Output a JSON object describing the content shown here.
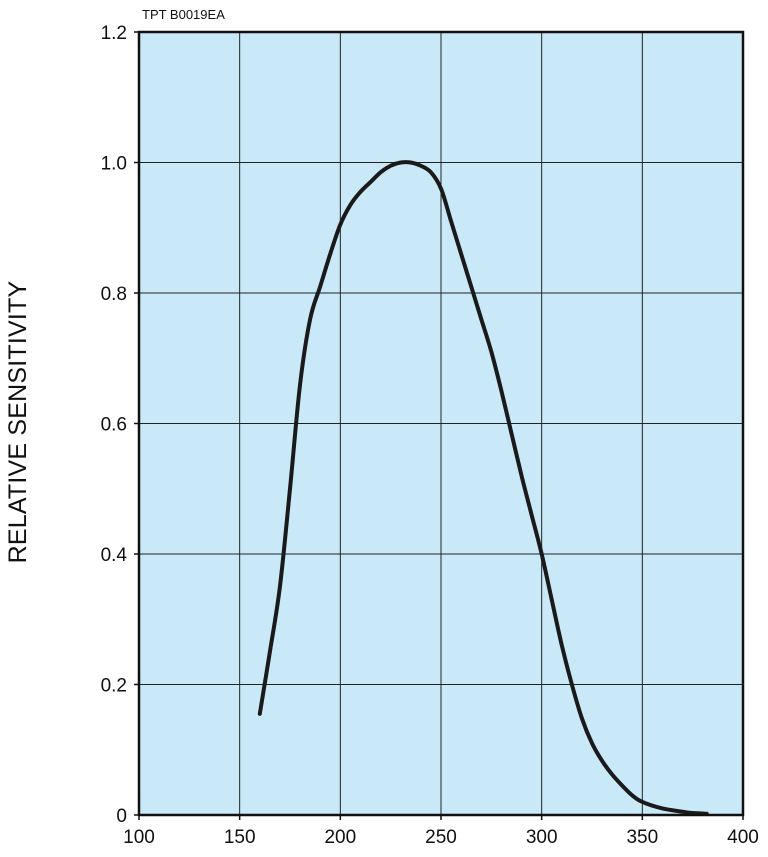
{
  "chart_data": {
    "type": "line",
    "code_label": "TPT B0019EA",
    "ylabel": "RELATIVE SENSITIVITY",
    "xlabel": "",
    "xlim": [
      100,
      400
    ],
    "ylim": [
      0,
      1.2
    ],
    "x_ticks": [
      100,
      150,
      200,
      250,
      300,
      350,
      400
    ],
    "x_tick_labels": [
      "100",
      "150",
      "200",
      "250",
      "300",
      "350",
      "400"
    ],
    "y_ticks": [
      0,
      0.2,
      0.4,
      0.6,
      0.8,
      1.0,
      1.2
    ],
    "y_tick_labels": [
      "0",
      "0.2",
      "0.4",
      "0.6",
      "0.8",
      "1.0",
      "1.2"
    ],
    "grid": true,
    "plot_background": "#c9e9f9",
    "grid_color": "#222222",
    "line_color": "#1a1a1a",
    "series": [
      {
        "x": [
          160,
          165,
          170,
          175,
          180,
          185,
          190,
          195,
          200,
          205,
          210,
          215,
          220,
          225,
          230,
          235,
          240,
          245,
          250,
          255,
          260,
          265,
          270,
          275,
          280,
          285,
          290,
          295,
          300,
          305,
          310,
          315,
          320,
          325,
          330,
          335,
          340,
          345,
          350,
          360,
          370,
          375,
          382
        ],
        "y": [
          0.155,
          0.25,
          0.35,
          0.5,
          0.66,
          0.76,
          0.81,
          0.86,
          0.905,
          0.935,
          0.955,
          0.97,
          0.985,
          0.995,
          1.0,
          1.0,
          0.995,
          0.985,
          0.96,
          0.91,
          0.86,
          0.81,
          0.76,
          0.71,
          0.65,
          0.585,
          0.52,
          0.46,
          0.4,
          0.33,
          0.26,
          0.2,
          0.148,
          0.11,
          0.083,
          0.062,
          0.045,
          0.03,
          0.02,
          0.01,
          0.005,
          0.003,
          0.002
        ]
      }
    ]
  }
}
